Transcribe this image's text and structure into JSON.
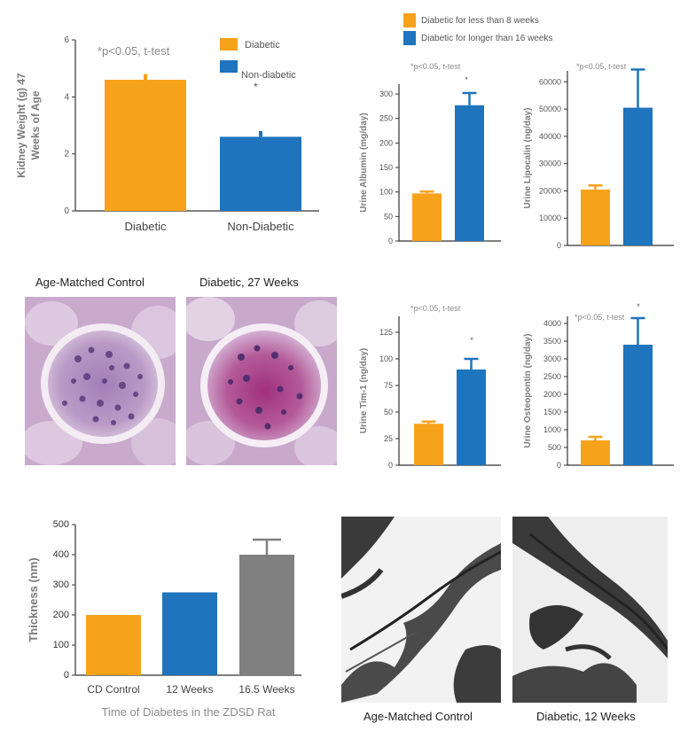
{
  "colors": {
    "orange": "#F7A21B",
    "blue": "#1E74BD",
    "gray": "#808080",
    "axis": "#333333",
    "label": "#7a7a7a"
  },
  "chart_data": [
    {
      "id": "kidney",
      "type": "bar",
      "categories": [
        "Diabetic",
        "Non-Diabetic"
      ],
      "values": [
        4.6,
        2.6
      ],
      "errors": [
        0.2,
        0.2
      ],
      "colors": [
        "#F7A21B",
        "#1E74BD"
      ],
      "ylim": [
        0,
        6
      ],
      "yticks": [
        0,
        2,
        4,
        6
      ],
      "ylabel": "Kidney Weight (g) 47 Weeks of Age",
      "annotation": "*p<0.05, t-test",
      "star": "*",
      "legend": [
        {
          "name": "Diabetic",
          "color": "#F7A21B"
        },
        {
          "name": "Non-diabetic",
          "color": "#1E74BD"
        }
      ]
    },
    {
      "id": "albumin",
      "type": "bar",
      "categories": [
        "",
        ""
      ],
      "values": [
        97,
        277
      ],
      "errors": [
        4,
        25
      ],
      "colors": [
        "#F7A21B",
        "#1E74BD"
      ],
      "ylim": [
        0,
        320
      ],
      "yticks": [
        0,
        50,
        100,
        150,
        200,
        250,
        300
      ],
      "ylabel": "Urine Albumin (mg/day)",
      "annotation": "*p<0.05, t-test",
      "star": "*"
    },
    {
      "id": "lipocalin",
      "type": "bar",
      "categories": [
        "",
        ""
      ],
      "values": [
        20500,
        50500
      ],
      "errors": [
        1500,
        14000
      ],
      "colors": [
        "#F7A21B",
        "#1E74BD"
      ],
      "ylim": [
        0,
        64000
      ],
      "yticks": [
        0,
        10000,
        20000,
        30000,
        40000,
        50000,
        60000
      ],
      "ylabel": "Urine Lipocalin (ng/day)",
      "annotation": "*p<0.05, t-test"
    },
    {
      "id": "tim1",
      "type": "bar",
      "categories": [
        "",
        ""
      ],
      "values": [
        39,
        90
      ],
      "errors": [
        2,
        10
      ],
      "colors": [
        "#F7A21B",
        "#1E74BD"
      ],
      "ylim": [
        0,
        140
      ],
      "yticks": [
        0,
        25,
        50,
        75,
        100,
        125
      ],
      "ylabel": "Urine Tim-1 (ng/day)",
      "annotation": "*p<0.05, t-test",
      "star": "*"
    },
    {
      "id": "osteopontin",
      "type": "bar",
      "categories": [
        "",
        ""
      ],
      "values": [
        700,
        3400
      ],
      "errors": [
        100,
        750
      ],
      "colors": [
        "#F7A21B",
        "#1E74BD"
      ],
      "ylim": [
        0,
        4200
      ],
      "yticks": [
        0,
        500,
        1000,
        1500,
        2000,
        2500,
        3000,
        3500,
        4000
      ],
      "ylabel": "Urine Osteopontin (ng/day)",
      "annotation": "*p<0.05, t-test",
      "star": "*"
    },
    {
      "id": "thickness",
      "type": "bar",
      "categories": [
        "CD Control",
        "12 Weeks",
        "16.5 Weeks"
      ],
      "values": [
        200,
        275,
        400
      ],
      "errors": [
        0,
        0,
        50
      ],
      "colors": [
        "#F7A21B",
        "#1E74BD",
        "#808080"
      ],
      "ylim": [
        0,
        500
      ],
      "yticks": [
        0,
        100,
        200,
        300,
        400,
        500
      ],
      "ylabel": "Thickness (nm)",
      "xlabel": "Time of Diabetes in the ZDSD Rat"
    }
  ],
  "top_legend": [
    {
      "name": "Diabetic for less than 8 weeks",
      "color": "#F7A21B"
    },
    {
      "name": "Diabetic for longer than 16 weeks",
      "color": "#1E74BD"
    }
  ],
  "micrographs": {
    "histo_control_label": "Age-Matched Control",
    "histo_diabetic_label": "Diabetic, 27 Weeks",
    "em_control_label": "Age-Matched Control",
    "em_diabetic_label": "Diabetic, 12 Weeks"
  }
}
